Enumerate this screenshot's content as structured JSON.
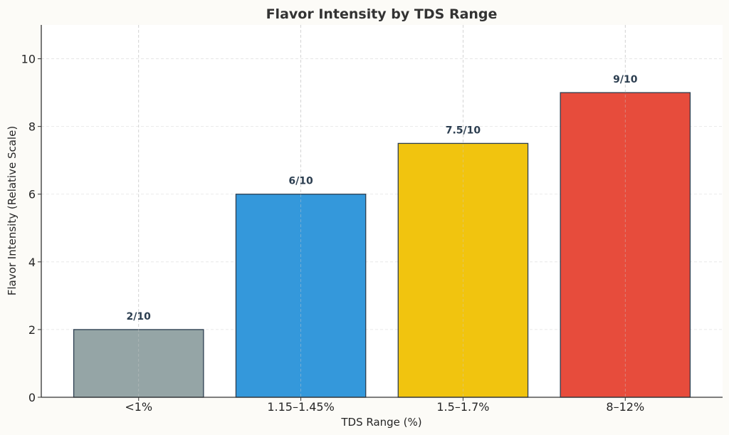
{
  "chart_data": {
    "type": "bar",
    "title": "Flavor Intensity by TDS Range",
    "xlabel": "TDS Range (%)",
    "ylabel": "Flavor Intensity (Relative Scale)",
    "categories": [
      "<1%",
      "1.15–1.45%",
      "1.5–1.7%",
      "8–12%"
    ],
    "values": [
      2,
      6,
      7.5,
      9
    ],
    "data_labels": [
      "2/10",
      "6/10",
      "7.5/10",
      "9/10"
    ],
    "colors": [
      "#95a5a6",
      "#3498db",
      "#f1c40f",
      "#e74c3c"
    ],
    "edge_color": "#2c3e50",
    "ylim": [
      0,
      11
    ],
    "yticks": [
      0,
      2,
      4,
      6,
      8,
      10
    ],
    "grid": true,
    "legend": "none"
  }
}
